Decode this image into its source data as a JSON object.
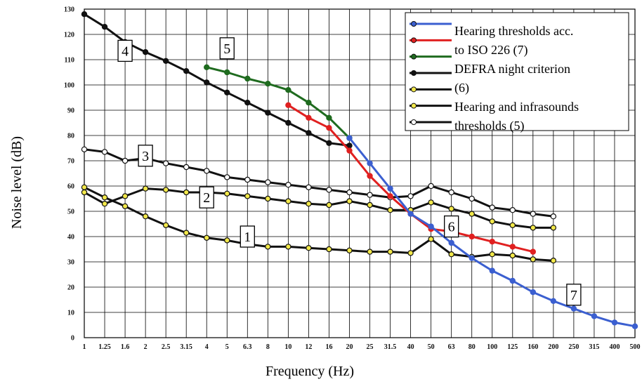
{
  "chart_data": {
    "type": "line",
    "xlabel": "Frequency (Hz)",
    "ylabel": "Noise level (dB)",
    "x_categories": [
      "1",
      "1.25",
      "1.6",
      "2",
      "2.5",
      "3.15",
      "4",
      "5",
      "6.3",
      "8",
      "10",
      "12",
      "16",
      "20",
      "25",
      "31.5",
      "40",
      "50",
      "63",
      "80",
      "100",
      "125",
      "160",
      "200",
      "250",
      "315",
      "400",
      "500"
    ],
    "y_ticks": [
      "0",
      "10",
      "20",
      "30",
      "40",
      "50",
      "60",
      "70",
      "80",
      "90",
      "100",
      "110",
      "120",
      "130"
    ],
    "ylim": [
      0,
      130
    ],
    "grid": true,
    "legend": {
      "position": "top-right",
      "entries": [
        "Hearing thresholds acc.",
        "to ISO 226 (7)",
        "DEFRA night criterion",
        "(6)",
        "Hearing and infrasounds",
        "thresholds (5)"
      ]
    },
    "series": [
      {
        "name": "Hearing thresholds acc. to ISO 226 (7)",
        "label": "7",
        "color": "#3b5fd0",
        "marker": "filled",
        "values": [
          null,
          null,
          null,
          null,
          null,
          null,
          null,
          null,
          null,
          null,
          null,
          null,
          null,
          79,
          69,
          59,
          49,
          44,
          37.5,
          31.5,
          26.5,
          22.5,
          18,
          14.5,
          11.5,
          8.5,
          6,
          4.5
        ]
      },
      {
        "name": "DEFRA night criterion (6)",
        "label": "6",
        "color": "#e02020",
        "marker": "filled",
        "values": [
          null,
          null,
          null,
          null,
          null,
          null,
          null,
          null,
          null,
          null,
          92,
          87,
          83,
          74,
          64,
          56,
          49,
          43,
          42,
          40,
          38,
          36,
          34,
          null,
          null,
          null,
          null,
          null
        ]
      },
      {
        "name": "Hearing and infrasounds thresholds (5)",
        "label": "5",
        "color": "#1f6b1f",
        "marker": "filled",
        "values": [
          null,
          null,
          null,
          null,
          null,
          null,
          107,
          105,
          102.5,
          100.5,
          98,
          93,
          87,
          79,
          null,
          null,
          null,
          null,
          null,
          null,
          null,
          null,
          null,
          null,
          null,
          null,
          null,
          null
        ]
      },
      {
        "name": "",
        "label": "4",
        "color": "#111111",
        "marker": "filled",
        "values": [
          128,
          123,
          117,
          113,
          109.5,
          105.5,
          101,
          97,
          93,
          89,
          85,
          81,
          77,
          76,
          null,
          null,
          null,
          null,
          null,
          null,
          null,
          null,
          null,
          null,
          null,
          null,
          null,
          null
        ]
      },
      {
        "name": "",
        "label": "3",
        "color": "#111111",
        "marker": "open",
        "values": [
          74.5,
          73.5,
          70,
          71,
          69,
          67.5,
          66,
          63.5,
          62.5,
          61.5,
          60.5,
          59.5,
          58.5,
          57.5,
          56.5,
          55.5,
          56,
          60,
          57.5,
          55,
          51.5,
          50.5,
          49,
          48,
          null,
          null,
          null,
          null
        ]
      },
      {
        "name": "",
        "label": "2",
        "color": "#111111",
        "marker": "yellow",
        "values": [
          57.5,
          53,
          56,
          59,
          58.5,
          57.5,
          57.5,
          57,
          56,
          55,
          54,
          53,
          52.5,
          54,
          52.5,
          50.5,
          50.5,
          53.5,
          51,
          49,
          46,
          44.5,
          43.5,
          43.5,
          null,
          null,
          null,
          null
        ]
      },
      {
        "name": "",
        "label": "1",
        "color": "#111111",
        "marker": "yellow",
        "values": [
          59.5,
          55.5,
          52,
          48,
          44.5,
          41.5,
          39.5,
          38.5,
          37,
          36,
          36,
          35.5,
          35,
          34.5,
          34,
          34,
          33.5,
          39,
          33,
          32,
          33,
          32.5,
          31,
          30.5,
          null,
          null,
          null,
          null
        ]
      }
    ],
    "callouts": [
      {
        "text": "1",
        "x": "6.3",
        "y": 40
      },
      {
        "text": "2",
        "x": "4",
        "y": 55.5
      },
      {
        "text": "3",
        "x": "2",
        "y": 72
      },
      {
        "text": "4",
        "x": "1.6",
        "y": 113.5
      },
      {
        "text": "5",
        "x": "5",
        "y": 114.5
      },
      {
        "text": "6",
        "x": "63",
        "y": 44
      },
      {
        "text": "7",
        "x": "250",
        "y": 17
      }
    ]
  }
}
